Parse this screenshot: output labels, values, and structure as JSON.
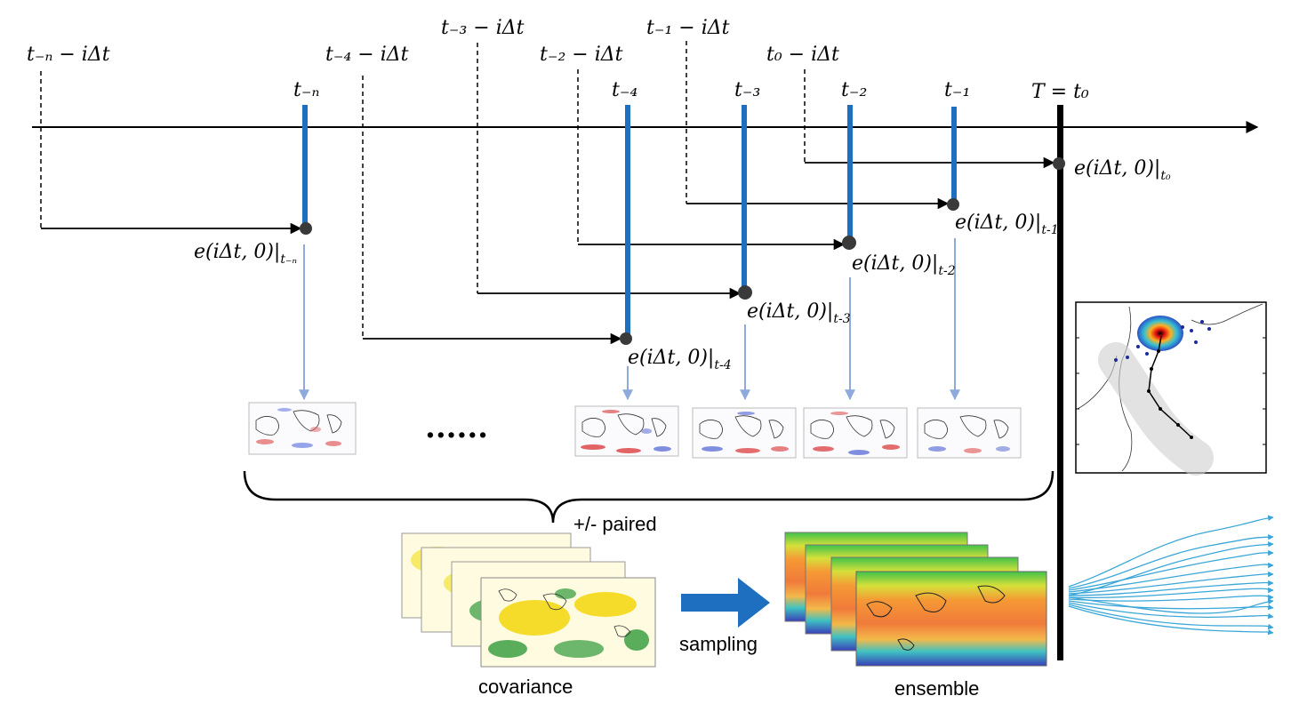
{
  "timeline_labels": {
    "tn": "t₋ₙ",
    "t4": "t₋₄",
    "t3": "t₋₃",
    "t2": "t₋₂",
    "t1": "t₋₁",
    "T": "T = t₀"
  },
  "init_labels": {
    "tn": "t₋ₙ − iΔt",
    "t4": "t₋₄ − iΔt",
    "t3": "t₋₃ − iΔt",
    "t2": "t₋₂ − iΔt",
    "t1": "t₋₁ − iΔt",
    "t0": "t₀ − iΔt"
  },
  "error_labels": {
    "base": "e(iΔt, 0)|",
    "tn_sub": "t₋ₙ",
    "t4_sub": "t-4",
    "t3_sub": "t-3",
    "t2_sub": "t-2",
    "t1_sub": "t-1",
    "t0_sub": "t₀"
  },
  "ellipsis": "......",
  "paired_label": "+/- paired",
  "covariance_label": "covariance",
  "sampling_label": "sampling",
  "ensemble_label": "ensemble",
  "colors": {
    "axis": "#000000",
    "forecast_bar": "#1f6fc0",
    "light_arrow": "#8eaadb",
    "big_arrow": "#1f6fc0",
    "dot": "#3a3a3a",
    "track_lines": "#3aa6d8"
  }
}
